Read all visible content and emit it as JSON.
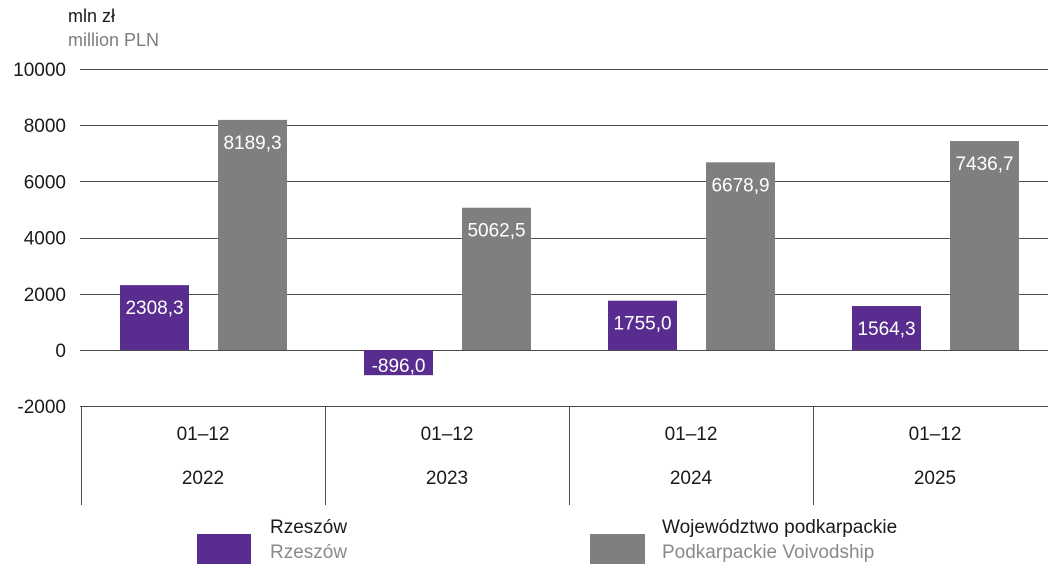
{
  "chart_data": {
    "type": "bar",
    "y_unit": "mln zł",
    "y_unit_en": "million PLN",
    "ylim": [
      -2000,
      10000
    ],
    "yticks": [
      -2000,
      0,
      2000,
      4000,
      6000,
      8000,
      10000
    ],
    "grid": true,
    "legend_position": "bottom",
    "categories": [
      {
        "period": "01–12",
        "year": "2022"
      },
      {
        "period": "01–12",
        "year": "2023"
      },
      {
        "period": "01–12",
        "year": "2024"
      },
      {
        "period": "01–12",
        "year": "2025"
      }
    ],
    "series": [
      {
        "name": "Rzeszów",
        "name_en": "Rzeszów",
        "color": "#592d8f",
        "values": [
          2308.3,
          -896.0,
          1755.0,
          1564.3
        ]
      },
      {
        "name": "Województwo podkarpackie",
        "name_en": "Podkarpackie Voivodship",
        "color": "#7f7f80",
        "values": [
          8189.3,
          5062.5,
          6678.9,
          7436.7
        ]
      }
    ]
  }
}
